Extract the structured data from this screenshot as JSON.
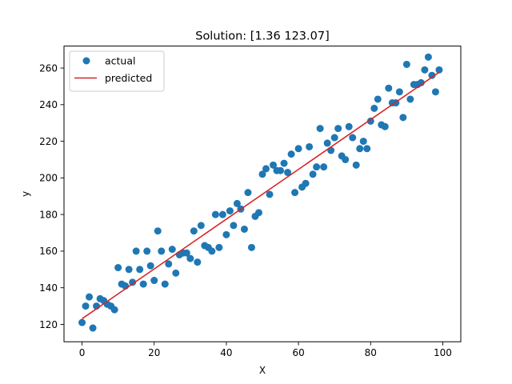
{
  "chart_data": {
    "type": "scatter",
    "title": "Solution: [1.36  123.07]",
    "xlabel": "X",
    "ylabel": "y",
    "xlim": [
      -5,
      105
    ],
    "ylim": [
      110.5,
      272
    ],
    "xticks": [
      0,
      20,
      40,
      60,
      80,
      100
    ],
    "yticks": [
      120,
      140,
      160,
      180,
      200,
      220,
      240,
      260
    ],
    "grid": false,
    "legend_position": "top-left",
    "series": [
      {
        "name": "actual",
        "kind": "scatter",
        "color": "#1f77b4",
        "x": [
          0,
          1,
          2,
          3,
          4,
          5,
          6,
          7,
          8,
          9,
          10,
          11,
          12,
          13,
          14,
          15,
          16,
          17,
          18,
          19,
          20,
          21,
          22,
          23,
          24,
          25,
          26,
          27,
          28,
          29,
          30,
          31,
          32,
          33,
          34,
          35,
          36,
          37,
          38,
          39,
          40,
          41,
          42,
          43,
          44,
          45,
          46,
          47,
          48,
          49,
          50,
          51,
          52,
          53,
          54,
          55,
          56,
          57,
          58,
          59,
          60,
          61,
          62,
          63,
          64,
          65,
          66,
          67,
          68,
          69,
          70,
          71,
          72,
          73,
          74,
          75,
          76,
          77,
          78,
          79,
          80,
          81,
          82,
          83,
          84,
          85,
          86,
          87,
          88,
          89,
          90,
          91,
          92,
          93,
          94,
          95,
          96,
          97,
          98,
          99
        ],
        "y": [
          121,
          130,
          135,
          118,
          130,
          134,
          133,
          131,
          130,
          128,
          151,
          142,
          141,
          150,
          143,
          160,
          150,
          142,
          160,
          152,
          144,
          171,
          160,
          142,
          153,
          161,
          148,
          158,
          159,
          159,
          156,
          171,
          154,
          174,
          163,
          162,
          160,
          180,
          162,
          180,
          169,
          182,
          174,
          186,
          183,
          172,
          192,
          162,
          179,
          181,
          202,
          205,
          191,
          207,
          204,
          204,
          208,
          203,
          213,
          192,
          216,
          195,
          197,
          217,
          202,
          206,
          227,
          206,
          219,
          215,
          222,
          227,
          212,
          210,
          228,
          222,
          207,
          216,
          220,
          216,
          231,
          238,
          243,
          229,
          228,
          249,
          241,
          241,
          247,
          233,
          262,
          243,
          251,
          251,
          252,
          259,
          266,
          256,
          247,
          259
        ]
      },
      {
        "name": "predicted",
        "kind": "line",
        "color": "#d62728",
        "x": [
          0,
          99
        ],
        "y": [
          123.07,
          257.71
        ]
      }
    ]
  }
}
